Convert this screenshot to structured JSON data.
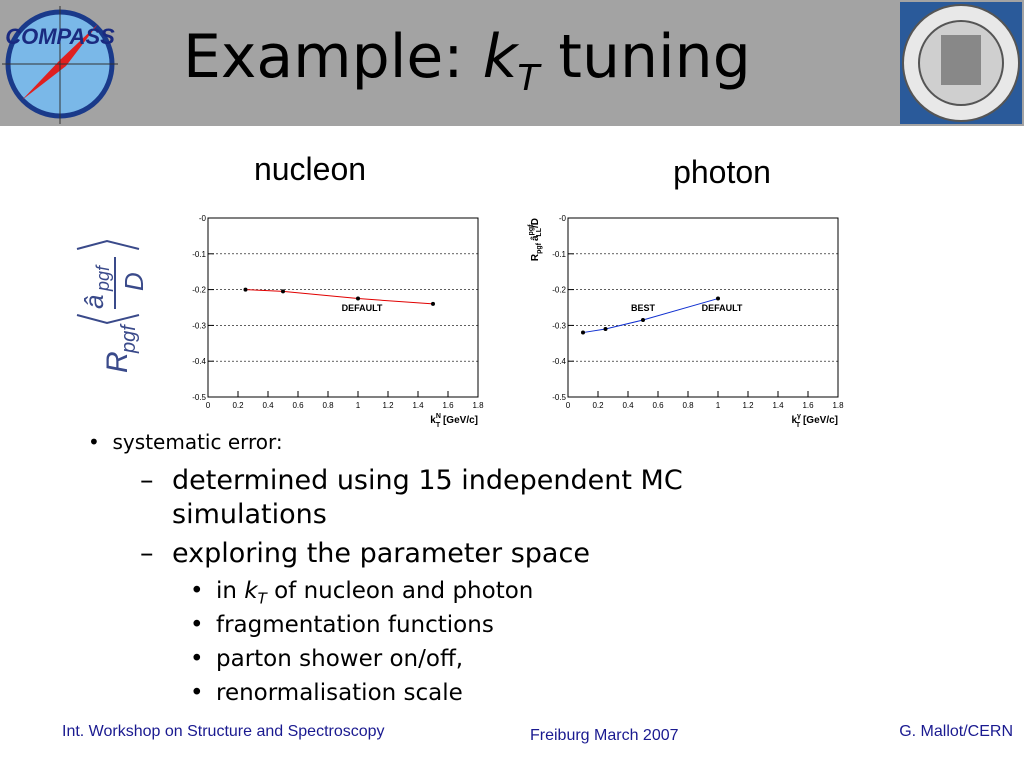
{
  "header": {
    "logo": "COMPASS",
    "title": {
      "pre": "Example: ",
      "k": "k",
      "sub": "T",
      "post": " tuning"
    }
  },
  "formula": {
    "r": "R",
    "r_sub": "pgf",
    "a": "â",
    "a_sub": "pgf",
    "d": "D"
  },
  "chart_data": [
    {
      "type": "line",
      "title": "nucleon",
      "x": [
        0.25,
        0.5,
        1,
        1.5
      ],
      "values": [
        -0.2,
        -0.205,
        -0.225,
        -0.24
      ],
      "color": "#e00000",
      "xlim": [
        0,
        1.8
      ],
      "xticks": [
        0,
        0.2,
        0.4,
        0.6,
        0.8,
        1,
        1.2,
        1.4,
        1.6,
        1.8
      ],
      "ylim": [
        -0.5,
        0
      ],
      "yticks": [
        {
          "value": 0,
          "label": "-0"
        },
        {
          "value": -0.1,
          "label": "-0.1"
        },
        {
          "value": -0.2,
          "label": "-0.2"
        },
        {
          "value": -0.3,
          "label": "-0.3"
        },
        {
          "value": -0.4,
          "label": "-0.4"
        },
        {
          "value": -0.5,
          "label": "-0.5"
        }
      ],
      "grid": true,
      "xlabel": {
        "k": "k",
        "sup": "N",
        "sub": "T",
        "post": " [GeV/c]"
      },
      "annotations": [
        "DEFAULT"
      ]
    },
    {
      "type": "line",
      "title": "photon",
      "x": [
        0.1,
        0.25,
        0.5,
        1
      ],
      "values": [
        -0.32,
        -0.31,
        -0.285,
        -0.225
      ],
      "color": "#1030d0",
      "xlim": [
        0,
        1.8
      ],
      "xticks": [
        0,
        0.2,
        0.4,
        0.6,
        0.8,
        1,
        1.2,
        1.4,
        1.6,
        1.8
      ],
      "ylim": [
        -0.5,
        0
      ],
      "yticks": [
        {
          "value": 0,
          "label": "-0"
        },
        {
          "value": -0.1,
          "label": "-0.1"
        },
        {
          "value": -0.2,
          "label": "-0.2"
        },
        {
          "value": -0.3,
          "label": "-0.3"
        },
        {
          "value": -0.4,
          "label": "-0.4"
        },
        {
          "value": -0.5,
          "label": "-0.5"
        }
      ],
      "grid": true,
      "xlabel": {
        "k": "k",
        "sup": "γ",
        "sub": "T",
        "post": " [GeV/c]"
      },
      "ylabel": {
        "r": "R",
        "r_sub": "pgf",
        "a": "â",
        "a_sup": "pgf",
        "a_sub": "LL",
        "post": "/D"
      },
      "annotations": [
        "BEST",
        "DEFAULT"
      ]
    }
  ],
  "bullets": {
    "text": "systematic error:",
    "items": [
      {
        "text": "determined using 15 independent MC simulations"
      },
      {
        "text": "exploring the parameter space",
        "items": [
          {
            "pre": "in ",
            "k": "k",
            "sub": "T",
            "post": " of nucleon and photon"
          },
          {
            "text": "fragmentation functions"
          },
          {
            "text": "parton shower on/off,"
          },
          {
            "text": "renormalisation scale"
          }
        ]
      }
    ]
  },
  "footer": {
    "left": "Int. Workshop on Structure and Spectroscopy",
    "center": "Freiburg March 2007",
    "right": "G. Mallot/CERN"
  }
}
